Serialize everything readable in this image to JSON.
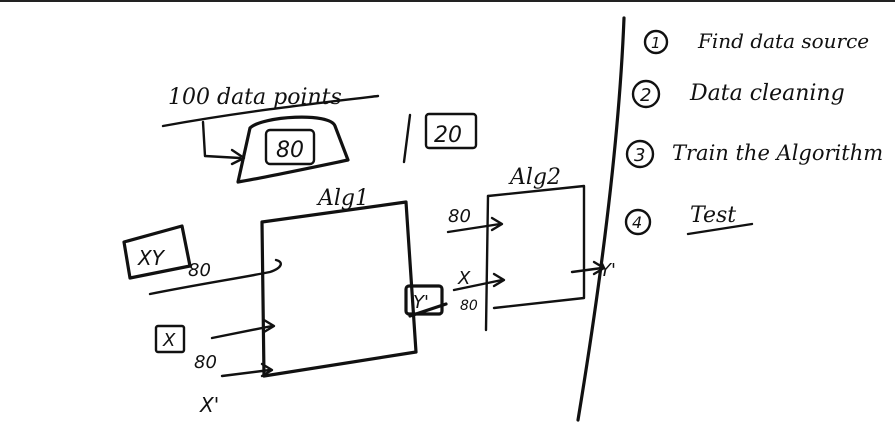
{
  "labels": {
    "data_points": "100 data points",
    "train_split": "80",
    "test_split": "20",
    "alg1": "Alg1",
    "alg2": "Alg2",
    "xy_input": "XY",
    "xy_count": "80",
    "x_input": "X",
    "x_count": "80",
    "x_prime": "X'",
    "y_prime_out": "Y'",
    "alg2_in_top": "80",
    "alg2_in_x": "X",
    "alg2_in_count": "80",
    "alg2_out": "Y'"
  },
  "steps": [
    {
      "num": "1",
      "text": "Find data source"
    },
    {
      "num": "2",
      "text": "Data cleaning"
    },
    {
      "num": "3",
      "text": "Train the Algorithm"
    },
    {
      "num": "4",
      "text": "Test"
    }
  ]
}
